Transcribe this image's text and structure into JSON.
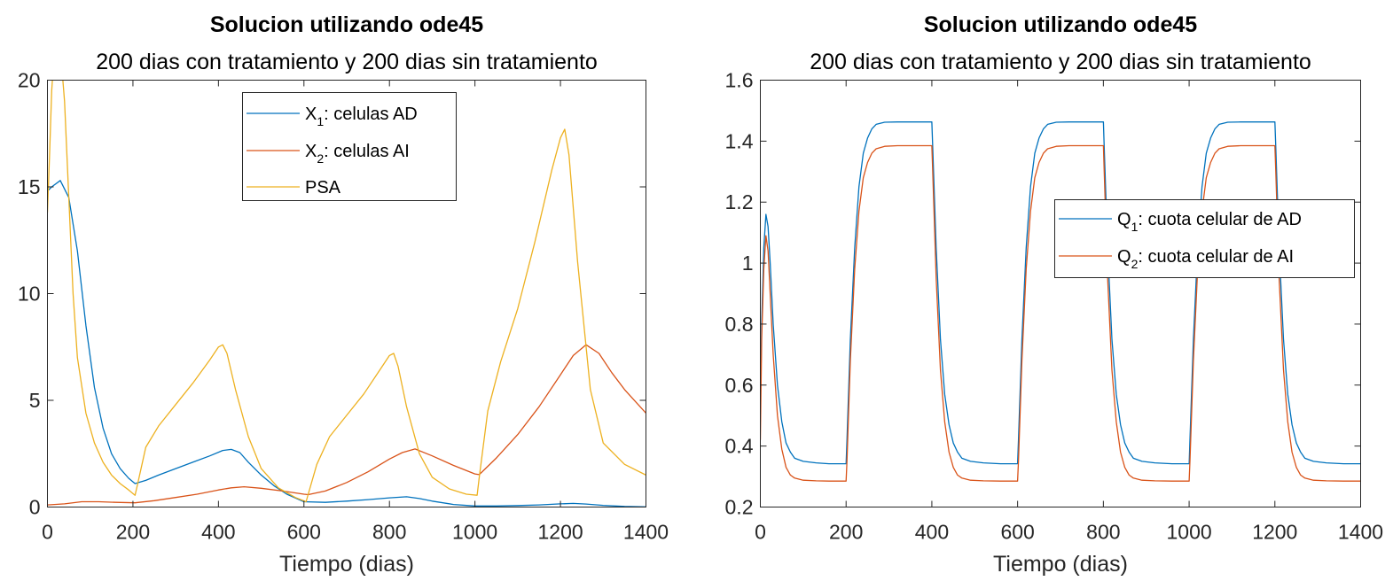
{
  "chart_data": [
    {
      "type": "line",
      "title": "Solucion utilizando ode45",
      "subtitle": "200 dias con tratamiento y 200 dias sin tratamiento",
      "xlabel": "Tiempo (dias)",
      "ylabel": "",
      "xlim": [
        0,
        1400
      ],
      "ylim": [
        0,
        20
      ],
      "xticks": [
        0,
        200,
        400,
        600,
        800,
        1000,
        1200,
        1400
      ],
      "yticks": [
        0,
        5,
        10,
        15,
        20
      ],
      "grid": false,
      "legend_position": "top-center",
      "series": [
        {
          "name": "X1: celulas AD",
          "legend_main": "X",
          "legend_sub": "1",
          "legend_rest": ": celulas AD",
          "color": "#0072BD",
          "x": [
            0,
            10,
            30,
            50,
            70,
            90,
            110,
            130,
            150,
            170,
            190,
            205,
            230,
            260,
            300,
            340,
            380,
            410,
            430,
            450,
            470,
            500,
            530,
            560,
            600,
            650,
            700,
            750,
            800,
            840,
            870,
            900,
            950,
            1000,
            1050,
            1100,
            1150,
            1200,
            1230,
            1260,
            1300,
            1350,
            1400
          ],
          "y": [
            14.8,
            15.0,
            15.3,
            14.5,
            12.0,
            8.5,
            5.6,
            3.7,
            2.5,
            1.8,
            1.35,
            1.1,
            1.25,
            1.5,
            1.8,
            2.1,
            2.4,
            2.65,
            2.7,
            2.55,
            2.1,
            1.5,
            1.0,
            0.6,
            0.25,
            0.22,
            0.28,
            0.35,
            0.43,
            0.48,
            0.4,
            0.28,
            0.12,
            0.05,
            0.05,
            0.07,
            0.1,
            0.15,
            0.17,
            0.14,
            0.08,
            0.03,
            0.01
          ]
        },
        {
          "name": "X2: celulas AI",
          "legend_main": "X",
          "legend_sub": "2",
          "legend_rest": ": celulas AI",
          "color": "#D95319",
          "x": [
            0,
            40,
            80,
            120,
            160,
            205,
            250,
            300,
            350,
            400,
            430,
            460,
            500,
            550,
            600,
            610,
            650,
            700,
            750,
            800,
            830,
            860,
            900,
            950,
            1000,
            1010,
            1050,
            1100,
            1150,
            1200,
            1230,
            1260,
            1290,
            1320,
            1350,
            1400
          ],
          "y": [
            0.1,
            0.15,
            0.25,
            0.25,
            0.22,
            0.2,
            0.3,
            0.45,
            0.6,
            0.8,
            0.9,
            0.95,
            0.88,
            0.75,
            0.6,
            0.58,
            0.75,
            1.15,
            1.65,
            2.25,
            2.55,
            2.72,
            2.4,
            1.95,
            1.55,
            1.52,
            2.3,
            3.4,
            4.7,
            6.2,
            7.1,
            7.6,
            7.2,
            6.3,
            5.5,
            4.4
          ]
        },
        {
          "name": "PSA",
          "legend_main": "PSA",
          "legend_sub": "",
          "legend_rest": "",
          "color": "#EDB120",
          "x": [
            0,
            5,
            10,
            15,
            20,
            30,
            40,
            50,
            60,
            70,
            90,
            110,
            130,
            150,
            170,
            190,
            205,
            210,
            230,
            260,
            300,
            340,
            380,
            400,
            410,
            420,
            440,
            470,
            500,
            540,
            580,
            605,
            610,
            630,
            660,
            700,
            740,
            780,
            800,
            810,
            820,
            840,
            870,
            900,
            940,
            980,
            1005,
            1010,
            1030,
            1060,
            1100,
            1140,
            1180,
            1200,
            1210,
            1220,
            1240,
            1270,
            1300,
            1350,
            1400
          ],
          "y": [
            13.8,
            16.5,
            19.5,
            21.0,
            21.8,
            21.5,
            19.0,
            14.5,
            10.0,
            7.0,
            4.4,
            3.0,
            2.1,
            1.5,
            1.1,
            0.8,
            0.55,
            1.0,
            2.8,
            3.8,
            4.8,
            5.8,
            6.9,
            7.5,
            7.6,
            7.2,
            5.5,
            3.3,
            1.8,
            0.9,
            0.45,
            0.25,
            0.6,
            2.0,
            3.3,
            4.3,
            5.3,
            6.5,
            7.1,
            7.2,
            6.6,
            4.7,
            2.5,
            1.4,
            0.85,
            0.6,
            0.55,
            1.4,
            4.5,
            6.8,
            9.3,
            12.4,
            15.8,
            17.3,
            17.7,
            16.5,
            11.5,
            5.5,
            3.0,
            2.0,
            1.5
          ]
        }
      ]
    },
    {
      "type": "line",
      "title": "Solucion utilizando ode45",
      "subtitle": "200 dias con tratamiento y 200 dias sin tratamiento",
      "xlabel": "Tiempo (dias)",
      "ylabel": "",
      "xlim": [
        0,
        1400
      ],
      "ylim": [
        0.2,
        1.6
      ],
      "xticks": [
        0,
        200,
        400,
        600,
        800,
        1000,
        1200,
        1400
      ],
      "yticks": [
        0.2,
        0.4,
        0.6,
        0.8,
        1,
        1.2,
        1.4,
        1.6
      ],
      "grid": false,
      "legend_position": "right",
      "series": [
        {
          "name": "Q1: cuota celular de AD",
          "legend_main": "Q",
          "legend_sub": "1",
          "legend_rest": ": cuota celular de AD",
          "color": "#0072BD",
          "x": [
            0,
            3,
            8,
            13,
            18,
            23,
            30,
            40,
            50,
            60,
            70,
            80,
            100,
            130,
            160,
            200,
            202,
            210,
            220,
            230,
            240,
            250,
            260,
            270,
            290,
            320,
            400,
            402,
            410,
            420,
            430,
            440,
            450,
            460,
            470,
            490,
            520,
            560,
            600,
            602,
            610,
            620,
            630,
            640,
            650,
            660,
            670,
            690,
            720,
            800,
            802,
            810,
            820,
            830,
            840,
            850,
            860,
            870,
            890,
            920,
            960,
            1000,
            1002,
            1010,
            1020,
            1030,
            1040,
            1050,
            1060,
            1070,
            1090,
            1120,
            1200,
            1202,
            1210,
            1220,
            1230,
            1240,
            1250,
            1260,
            1270,
            1290,
            1320,
            1360,
            1400
          ],
          "y": [
            0.5,
            0.8,
            1.05,
            1.16,
            1.12,
            1.0,
            0.8,
            0.6,
            0.48,
            0.41,
            0.38,
            0.36,
            0.35,
            0.345,
            0.342,
            0.342,
            0.42,
            0.75,
            1.05,
            1.25,
            1.36,
            1.41,
            1.44,
            1.455,
            1.462,
            1.463,
            1.463,
            1.38,
            1.05,
            0.75,
            0.57,
            0.47,
            0.41,
            0.38,
            0.36,
            0.35,
            0.345,
            0.342,
            0.342,
            0.42,
            0.75,
            1.05,
            1.25,
            1.36,
            1.41,
            1.44,
            1.455,
            1.462,
            1.463,
            1.463,
            1.38,
            1.05,
            0.75,
            0.57,
            0.47,
            0.41,
            0.38,
            0.36,
            0.35,
            0.345,
            0.342,
            0.342,
            0.42,
            0.75,
            1.05,
            1.25,
            1.36,
            1.41,
            1.44,
            1.455,
            1.462,
            1.463,
            1.463,
            1.38,
            1.05,
            0.75,
            0.57,
            0.47,
            0.41,
            0.38,
            0.36,
            0.35,
            0.345,
            0.342,
            0.342
          ]
        },
        {
          "name": "Q2: cuota celular de AI",
          "legend_main": "Q",
          "legend_sub": "2",
          "legend_rest": ": cuota celular de AI",
          "color": "#D95319",
          "x": [
            0,
            3,
            8,
            13,
            18,
            23,
            30,
            40,
            50,
            60,
            70,
            80,
            100,
            130,
            160,
            200,
            202,
            210,
            220,
            230,
            240,
            250,
            260,
            270,
            290,
            320,
            400,
            402,
            410,
            420,
            430,
            440,
            450,
            460,
            470,
            490,
            520,
            560,
            600,
            602,
            610,
            620,
            630,
            640,
            650,
            660,
            670,
            690,
            720,
            800,
            802,
            810,
            820,
            830,
            840,
            850,
            860,
            870,
            890,
            920,
            960,
            1000,
            1002,
            1010,
            1020,
            1030,
            1040,
            1050,
            1060,
            1070,
            1090,
            1120,
            1200,
            1202,
            1210,
            1220,
            1230,
            1240,
            1250,
            1260,
            1270,
            1290,
            1320,
            1360,
            1400
          ],
          "y": [
            0.42,
            0.75,
            0.98,
            1.09,
            1.04,
            0.9,
            0.7,
            0.5,
            0.39,
            0.33,
            0.305,
            0.295,
            0.288,
            0.286,
            0.285,
            0.285,
            0.35,
            0.68,
            0.98,
            1.17,
            1.28,
            1.33,
            1.36,
            1.375,
            1.383,
            1.385,
            1.385,
            1.3,
            0.95,
            0.65,
            0.48,
            0.38,
            0.33,
            0.305,
            0.295,
            0.288,
            0.286,
            0.285,
            0.285,
            0.35,
            0.68,
            0.98,
            1.17,
            1.28,
            1.33,
            1.36,
            1.375,
            1.383,
            1.385,
            1.385,
            1.3,
            0.95,
            0.65,
            0.48,
            0.38,
            0.33,
            0.305,
            0.295,
            0.288,
            0.286,
            0.285,
            0.285,
            0.35,
            0.68,
            0.98,
            1.17,
            1.28,
            1.33,
            1.36,
            1.375,
            1.383,
            1.385,
            1.385,
            1.3,
            0.95,
            0.65,
            0.48,
            0.38,
            0.33,
            0.305,
            0.295,
            0.288,
            0.286,
            0.285,
            0.285
          ]
        }
      ]
    }
  ]
}
